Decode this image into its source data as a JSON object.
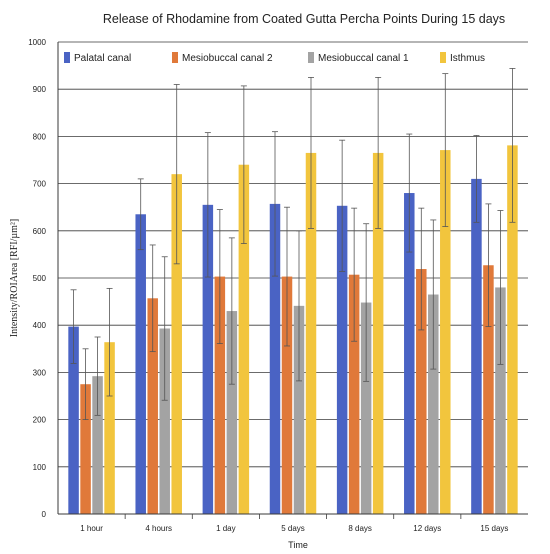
{
  "chart_data": {
    "type": "bar",
    "title": "Release of Rhodamine from Coated Gutta Percha Points During 15 days",
    "xlabel": "Time",
    "ylabel": "Intensity/ROIArea [RFI/µm²]",
    "ylim": [
      0,
      1000
    ],
    "yticks": [
      0,
      100,
      200,
      300,
      400,
      500,
      600,
      700,
      800,
      900,
      1000
    ],
    "grid": true,
    "legend_position": "top",
    "categories": [
      "1 hour",
      "4 hours",
      "1 day",
      "5 days",
      "8 days",
      "12 days",
      "15 days"
    ],
    "series": [
      {
        "name": "Palatal canal",
        "color": "#4a63c4",
        "values": [
          397,
          635,
          655,
          657,
          653,
          680,
          710
        ],
        "error_upper": [
          475,
          710,
          808,
          810,
          792,
          805,
          802
        ]
      },
      {
        "name": "Mesiobuccal canal 2",
        "color": "#e0793a",
        "values": [
          275,
          457,
          503,
          503,
          507,
          519,
          527
        ],
        "error_upper": [
          350,
          570,
          645,
          650,
          648,
          648,
          657
        ]
      },
      {
        "name": "Mesiobuccal canal 1",
        "color": "#a3a3a3",
        "values": [
          292,
          393,
          430,
          441,
          448,
          465,
          480
        ],
        "error_upper": [
          375,
          545,
          585,
          600,
          615,
          623,
          643
        ]
      },
      {
        "name": "Isthmus",
        "color": "#f2c53d",
        "values": [
          364,
          720,
          740,
          765,
          765,
          771,
          781
        ],
        "error_upper": [
          478,
          910,
          907,
          925,
          925,
          933,
          944
        ]
      }
    ]
  }
}
